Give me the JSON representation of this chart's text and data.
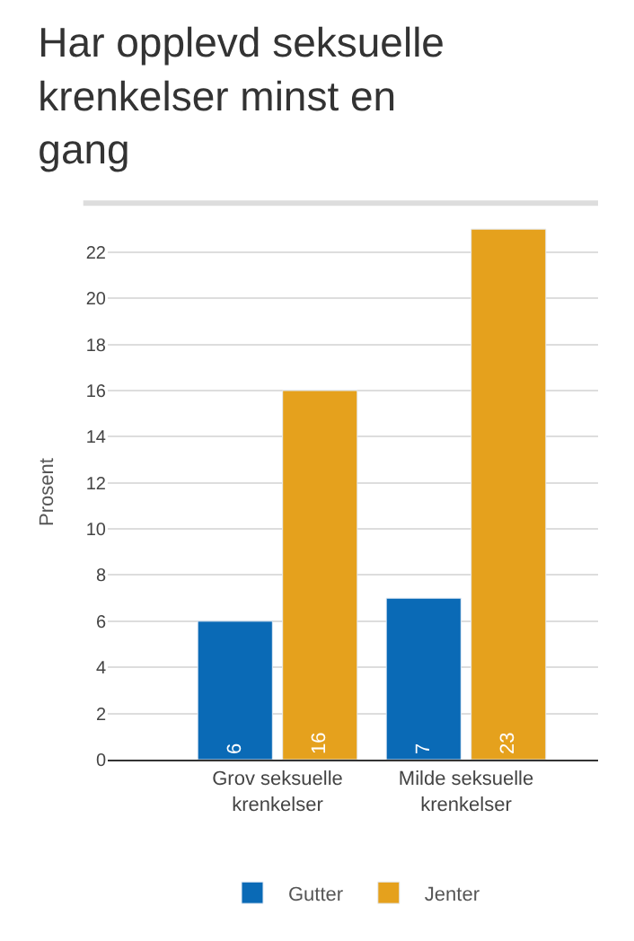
{
  "chart_data": {
    "type": "bar",
    "title": "Har opplevd seksuelle krenkelser minst en gang",
    "ylabel": "Prosent",
    "categories": [
      "Grov seksuelle krenkelser",
      "Milde seksuelle krenkelser"
    ],
    "series": [
      {
        "name": "Gutter",
        "color": "#0a6ab6",
        "values": [
          6,
          7
        ]
      },
      {
        "name": "Jenter",
        "color": "#e5a11d",
        "values": [
          16,
          23
        ]
      }
    ],
    "ylim": [
      0,
      23.2
    ],
    "yticks": [
      0,
      2,
      4,
      6,
      8,
      10,
      12,
      14,
      16,
      18,
      20,
      22
    ],
    "grid": "y",
    "legend": "bottom",
    "data_labels": true
  }
}
